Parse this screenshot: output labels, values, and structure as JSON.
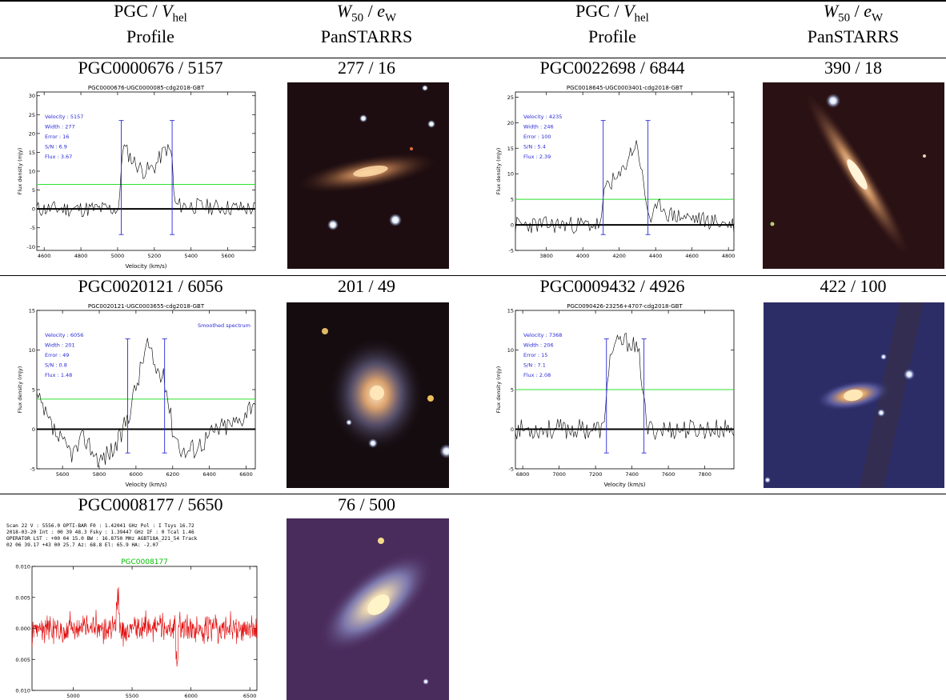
{
  "table": {
    "headers": [
      {
        "l1_a": "PGC / ",
        "l1_var": "V",
        "l1_sub": "hel",
        "l2": "Profile"
      },
      {
        "l1_var": "W",
        "l1_sub": "50",
        "l1_mid": " / ",
        "l1_var2": "e",
        "l1_sub2": "W",
        "l2": "PanSTARRS"
      },
      {
        "l1_a": "PGC / ",
        "l1_var": "V",
        "l1_sub": "hel",
        "l2": "Profile"
      },
      {
        "l1_var": "W",
        "l1_sub": "50",
        "l1_mid": " / ",
        "l1_var2": "e",
        "l1_sub2": "W",
        "l2": "PanSTARRS"
      }
    ],
    "rows": [
      [
        {
          "id": "PGC0000676 / 5157",
          "width": "277 / 16"
        },
        {
          "id": "PGC0022698 / 6844",
          "width": "390 / 18"
        }
      ],
      [
        {
          "id": "PGC0020121 / 6056",
          "width": "201 / 49"
        },
        {
          "id": "PGC0009432 / 4926",
          "width": "422 / 100"
        }
      ],
      [
        {
          "id": "PGC0008177 / 5650",
          "width": "76 / 500"
        }
      ]
    ]
  },
  "chart_data": [
    {
      "type": "line",
      "title": "PGC0000676-UGC0000085-cdg2018-GBT",
      "xlabel": "Velocity (km/s)",
      "ylabel": "Flux density (mJy)",
      "xlim": [
        4560,
        5750
      ],
      "ylim": [
        -11,
        31
      ],
      "xticks": [
        "4600",
        "4800",
        "5000",
        "5200",
        "5400",
        "5600"
      ],
      "yticks": [
        "-10",
        "-5",
        "0",
        "5",
        "10",
        "15",
        "20",
        "25",
        "30"
      ],
      "info": [
        "Velocity :   5157",
        "Width :   277",
        "Error :   16",
        "S/N :   6.9",
        "Flux :   3.67"
      ],
      "markers": [
        5020,
        5297
      ],
      "threshold": 6.5,
      "envelope": [
        [
          4560,
          0
        ],
        [
          5010,
          0
        ],
        [
          5025,
          17
        ],
        [
          5080,
          13
        ],
        [
          5140,
          10
        ],
        [
          5200,
          11
        ],
        [
          5260,
          16
        ],
        [
          5295,
          15
        ],
        [
          5310,
          1
        ],
        [
          5750,
          0
        ]
      ],
      "noise": 2.2,
      "seed": 11
    },
    {
      "type": "line",
      "title": "PGC0018645-UGC0003401-cdg2018-GBT",
      "xlabel": "",
      "ylabel": "Flux density (mJy)",
      "xlim": [
        3630,
        4830
      ],
      "ylim": [
        -5,
        26
      ],
      "xticks": [
        "3800",
        "4000",
        "4200",
        "4400",
        "4600",
        "4800"
      ],
      "yticks": [
        "-5",
        "0",
        "5",
        "10",
        "15",
        "20",
        "25"
      ],
      "info": [
        "Velocity :   4235",
        "Width :   246",
        "Error :   100",
        "S/N :   5.4",
        "Flux :   2.39"
      ],
      "markers": [
        4112,
        4358
      ],
      "threshold": 5,
      "envelope": [
        [
          3630,
          0
        ],
        [
          4100,
          0
        ],
        [
          4125,
          8
        ],
        [
          4200,
          9
        ],
        [
          4260,
          14
        ],
        [
          4300,
          16
        ],
        [
          4340,
          6
        ],
        [
          4370,
          1
        ],
        [
          4430,
          4
        ],
        [
          4470,
          2
        ],
        [
          4830,
          0
        ]
      ],
      "noise": 1.7,
      "seed": 23
    },
    {
      "type": "line",
      "title": "PGC0020121-UGC0003655-cdg2018-GBT",
      "xlabel": "Velocity (km/s)",
      "ylabel": "Flux density (mJy)",
      "xlim": [
        5460,
        6650
      ],
      "ylim": [
        -5,
        15
      ],
      "xticks": [
        "5600",
        "5800",
        "6000",
        "6200",
        "6400",
        "6600"
      ],
      "yticks": [
        "-5",
        "0",
        "5",
        "10",
        "15"
      ],
      "info": [
        "Velocity :   6056",
        "Width :   201",
        "Error :   49",
        "S/N :   0.8",
        "Flux :   1.48"
      ],
      "note": "Smoothed spectrum",
      "markers": [
        5955,
        6156
      ],
      "threshold": 3.8,
      "envelope": [
        [
          5460,
          4
        ],
        [
          5520,
          1
        ],
        [
          5600,
          -2
        ],
        [
          5660,
          -3
        ],
        [
          5720,
          -1
        ],
        [
          5800,
          -4
        ],
        [
          5900,
          -2
        ],
        [
          5960,
          2
        ],
        [
          6020,
          7
        ],
        [
          6060,
          11
        ],
        [
          6100,
          8
        ],
        [
          6160,
          6
        ],
        [
          6200,
          0
        ],
        [
          6260,
          -3
        ],
        [
          6340,
          -2
        ],
        [
          6440,
          0
        ],
        [
          6560,
          1
        ],
        [
          6650,
          4
        ]
      ],
      "noise": 1.4,
      "seed": 37
    },
    {
      "type": "line",
      "title": "PGC0090426-23256+4707-cdg2018-GBT",
      "xlabel": "Velocity (km/s)",
      "ylabel": "Flux density (mJy)",
      "xlim": [
        6760,
        7960
      ],
      "ylim": [
        -5,
        15
      ],
      "xticks": [
        "6800",
        "7000",
        "7200",
        "7400",
        "7600",
        "7800"
      ],
      "yticks": [
        "-5",
        "0",
        "5",
        "10",
        "15"
      ],
      "info": [
        "Velocity :   7368",
        "Width :   206",
        "Error :   15",
        "S/N :   7.1",
        "Flux :   2.08"
      ],
      "markers": [
        7260,
        7466
      ],
      "threshold": 5,
      "envelope": [
        [
          6760,
          0
        ],
        [
          7250,
          0
        ],
        [
          7265,
          7
        ],
        [
          7290,
          10
        ],
        [
          7340,
          11
        ],
        [
          7400,
          11
        ],
        [
          7440,
          9
        ],
        [
          7462,
          5
        ],
        [
          7480,
          0
        ],
        [
          7960,
          0
        ]
      ],
      "noise": 1.3,
      "seed": 53
    },
    {
      "type": "line",
      "title": "PGC0008177",
      "xlabel": "",
      "ylabel": "",
      "xlim": [
        4650,
        6560
      ],
      "ylim": [
        -0.0105,
        0.0105
      ],
      "xticks": [
        "5000",
        "5500",
        "6000",
        "6500"
      ],
      "yticks": [
        "0.010",
        "0.005",
        "0.000",
        "0.005",
        "0.010"
      ],
      "header_lines": [
        "Scan      22      V :    5556.0 OPTI-BAR   F0 :    1.42041 GHz  Pol :    I      Tsys   16.72",
        "2018-03-20       Int :  00 39 48.3         Fsky :  1.39447 GHz  IF  :    0      Tcal    1.46",
        "OPERATOR         LST : +00 04 15.0         BW  :   16.8750 MHz  AGBT18A_221_54 Track",
        "02 06 39.17  +43 00 25.7                             Az:  68.8   El:  65.9   HA:  -2.07"
      ],
      "noise": 0.0023,
      "seed": 71
    }
  ]
}
